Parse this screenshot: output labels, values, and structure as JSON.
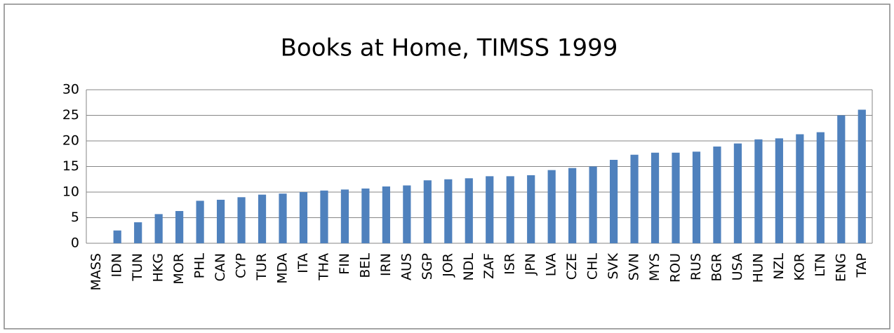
{
  "chart_data": {
    "type": "bar",
    "title": "Books at Home, TIMSS 1999",
    "categories": [
      "MASS",
      "IDN",
      "TUN",
      "HKG",
      "MOR",
      "PHL",
      "CAN",
      "CYP",
      "TUR",
      "MDA",
      "ITA",
      "THA",
      "FIN",
      "BEL",
      "IRN",
      "AUS",
      "SGP",
      "JOR",
      "NDL",
      "ZAF",
      "ISR",
      "JPN",
      "LVA",
      "CZE",
      "CHL",
      "SVK",
      "SVN",
      "MYS",
      "ROU",
      "RUS",
      "BGR",
      "USA",
      "HUN",
      "NZL",
      "KOR",
      "LTN",
      "ENG",
      "TAP"
    ],
    "values": [
      0,
      2.5,
      4.1,
      5.7,
      6.3,
      8.3,
      8.5,
      9.0,
      9.5,
      9.7,
      10.0,
      10.3,
      10.5,
      10.7,
      11.1,
      11.3,
      12.3,
      12.5,
      12.7,
      13.1,
      13.1,
      13.3,
      14.3,
      14.7,
      15.0,
      16.3,
      17.3,
      17.7,
      17.7,
      17.9,
      18.9,
      19.5,
      20.3,
      20.5,
      21.3,
      21.7,
      25.0,
      26.1
    ],
    "color": "#4f81bd",
    "ylim": [
      0,
      30
    ],
    "yticks": [
      0,
      5,
      10,
      15,
      20,
      25,
      30
    ],
    "grid": true
  }
}
